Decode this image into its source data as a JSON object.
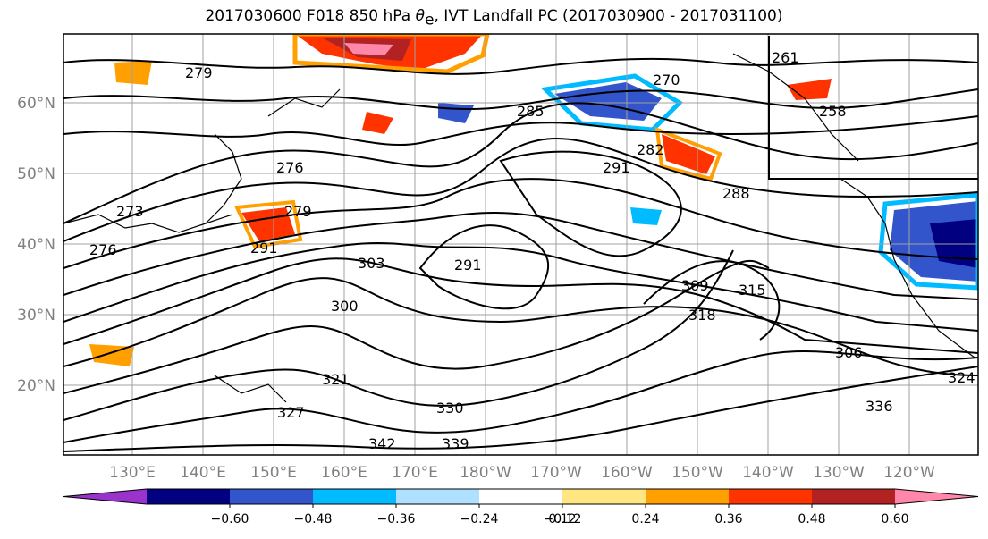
{
  "title": {
    "prefix": "2017030600 F018 850 hPa ",
    "theta": "θ",
    "theta_sub": "e",
    "suffix": ", IVT Landfall PC (2017030900 - 2017031100)"
  },
  "map": {
    "lat_labels": [
      "60°N",
      "50°N",
      "40°N",
      "30°N",
      "20°N"
    ],
    "lon_labels": [
      "130°E",
      "140°E",
      "150°E",
      "160°E",
      "170°E",
      "180°W",
      "170°W",
      "160°W",
      "150°W",
      "140°W",
      "130°W",
      "120°W"
    ],
    "contour_labels": [
      "276",
      "279",
      "273",
      "276",
      "291",
      "279",
      "303",
      "291",
      "300",
      "291",
      "288",
      "261",
      "258",
      "306",
      "309",
      "315",
      "318",
      "321",
      "324",
      "330",
      "336",
      "339",
      "342",
      "327",
      "282",
      "285",
      "270"
    ]
  },
  "colorbar": {
    "colors": [
      "#9933cc",
      "#000080",
      "#3355cc",
      "#00bbff",
      "#b0e0ff",
      "#ffffff",
      "#ffe680",
      "#ffa000",
      "#ff3300",
      "#b22222",
      "#ff88aa"
    ],
    "ticks": [
      "−0.60",
      "−0.48",
      "−0.36",
      "−0.24",
      "−0.12",
      "0.12",
      "0.24",
      "0.36",
      "0.48",
      "0.60"
    ]
  }
}
